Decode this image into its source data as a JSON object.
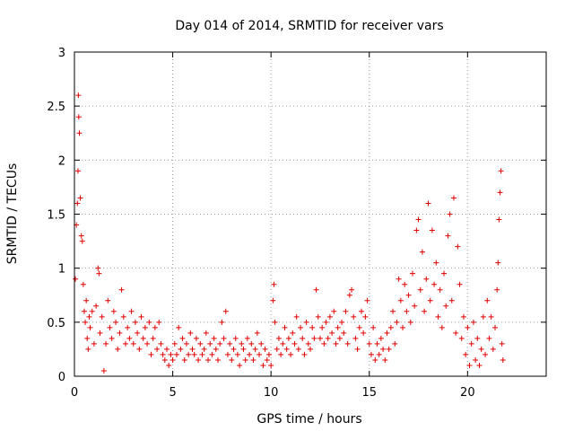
{
  "chart_data": {
    "type": "scatter",
    "title": "Day 014 of 2014, SRMTID for receiver vars",
    "xlabel": "GPS time / hours",
    "ylabel": "SRMTID / TECUs",
    "xlim": [
      0,
      24
    ],
    "ylim": [
      0,
      3
    ],
    "xticks": [
      0,
      5,
      10,
      15,
      20
    ],
    "yticks": [
      0,
      0.5,
      1,
      1.5,
      2,
      2.5,
      3
    ],
    "xtick_labels": [
      "0",
      "5",
      "10",
      "15",
      "20"
    ],
    "ytick_labels": [
      "0",
      "0.5",
      "1",
      "1.5",
      "2",
      "2.5",
      "3"
    ],
    "grid": true,
    "marker": "plus",
    "color": "#e00000",
    "series": [
      {
        "name": "SRMTID",
        "points": [
          [
            0.05,
            0.9
          ],
          [
            0.1,
            1.4
          ],
          [
            0.15,
            1.6
          ],
          [
            0.2,
            2.6
          ],
          [
            0.22,
            2.4
          ],
          [
            0.25,
            2.25
          ],
          [
            0.18,
            1.9
          ],
          [
            0.3,
            1.65
          ],
          [
            0.35,
            1.3
          ],
          [
            0.4,
            1.25
          ],
          [
            0.45,
            0.85
          ],
          [
            0.5,
            0.6
          ],
          [
            0.55,
            0.5
          ],
          [
            0.6,
            0.7
          ],
          [
            0.65,
            0.35
          ],
          [
            0.7,
            0.25
          ],
          [
            0.75,
            0.55
          ],
          [
            0.8,
            0.45
          ],
          [
            0.9,
            0.6
          ],
          [
            1.0,
            0.3
          ],
          [
            1.1,
            0.65
          ],
          [
            1.2,
            1.0
          ],
          [
            1.25,
            0.95
          ],
          [
            1.3,
            0.4
          ],
          [
            1.4,
            0.55
          ],
          [
            1.5,
            0.05
          ],
          [
            1.6,
            0.3
          ],
          [
            1.7,
            0.7
          ],
          [
            1.8,
            0.45
          ],
          [
            1.9,
            0.35
          ],
          [
            2.0,
            0.6
          ],
          [
            2.1,
            0.5
          ],
          [
            2.2,
            0.25
          ],
          [
            2.3,
            0.4
          ],
          [
            2.4,
            0.8
          ],
          [
            2.5,
            0.55
          ],
          [
            2.6,
            0.3
          ],
          [
            2.7,
            0.45
          ],
          [
            2.8,
            0.35
          ],
          [
            2.9,
            0.6
          ],
          [
            3.0,
            0.3
          ],
          [
            3.1,
            0.5
          ],
          [
            3.2,
            0.4
          ],
          [
            3.3,
            0.25
          ],
          [
            3.4,
            0.55
          ],
          [
            3.5,
            0.35
          ],
          [
            3.6,
            0.45
          ],
          [
            3.7,
            0.3
          ],
          [
            3.8,
            0.5
          ],
          [
            3.9,
            0.2
          ],
          [
            4.0,
            0.35
          ],
          [
            4.1,
            0.45
          ],
          [
            4.2,
            0.25
          ],
          [
            4.3,
            0.5
          ],
          [
            4.4,
            0.3
          ],
          [
            4.5,
            0.2
          ],
          [
            4.6,
            0.15
          ],
          [
            4.7,
            0.25
          ],
          [
            4.8,
            0.1
          ],
          [
            4.9,
            0.2
          ],
          [
            5.0,
            0.15
          ],
          [
            5.1,
            0.3
          ],
          [
            5.2,
            0.2
          ],
          [
            5.3,
            0.45
          ],
          [
            5.4,
            0.25
          ],
          [
            5.5,
            0.35
          ],
          [
            5.6,
            0.15
          ],
          [
            5.7,
            0.3
          ],
          [
            5.8,
            0.2
          ],
          [
            5.9,
            0.4
          ],
          [
            6.0,
            0.25
          ],
          [
            6.1,
            0.2
          ],
          [
            6.2,
            0.35
          ],
          [
            6.3,
            0.15
          ],
          [
            6.4,
            0.3
          ],
          [
            6.5,
            0.2
          ],
          [
            6.6,
            0.25
          ],
          [
            6.7,
            0.4
          ],
          [
            6.8,
            0.15
          ],
          [
            6.9,
            0.3
          ],
          [
            7.0,
            0.2
          ],
          [
            7.1,
            0.35
          ],
          [
            7.2,
            0.25
          ],
          [
            7.3,
            0.15
          ],
          [
            7.4,
            0.3
          ],
          [
            7.5,
            0.5
          ],
          [
            7.6,
            0.35
          ],
          [
            7.7,
            0.6
          ],
          [
            7.8,
            0.2
          ],
          [
            7.9,
            0.3
          ],
          [
            8.0,
            0.15
          ],
          [
            8.1,
            0.25
          ],
          [
            8.2,
            0.35
          ],
          [
            8.3,
            0.2
          ],
          [
            8.4,
            0.1
          ],
          [
            8.5,
            0.3
          ],
          [
            8.6,
            0.25
          ],
          [
            8.7,
            0.15
          ],
          [
            8.8,
            0.35
          ],
          [
            8.9,
            0.2
          ],
          [
            9.0,
            0.3
          ],
          [
            9.1,
            0.15
          ],
          [
            9.2,
            0.25
          ],
          [
            9.3,
            0.4
          ],
          [
            9.4,
            0.2
          ],
          [
            9.5,
            0.3
          ],
          [
            9.6,
            0.1
          ],
          [
            9.7,
            0.25
          ],
          [
            9.8,
            0.15
          ],
          [
            9.9,
            0.2
          ],
          [
            10.0,
            0.1
          ],
          [
            10.1,
            0.7
          ],
          [
            10.15,
            0.85
          ],
          [
            10.2,
            0.5
          ],
          [
            10.3,
            0.25
          ],
          [
            10.4,
            0.35
          ],
          [
            10.5,
            0.2
          ],
          [
            10.6,
            0.3
          ],
          [
            10.7,
            0.45
          ],
          [
            10.8,
            0.25
          ],
          [
            10.9,
            0.35
          ],
          [
            11.0,
            0.2
          ],
          [
            11.1,
            0.4
          ],
          [
            11.2,
            0.3
          ],
          [
            11.3,
            0.55
          ],
          [
            11.4,
            0.25
          ],
          [
            11.5,
            0.45
          ],
          [
            11.6,
            0.35
          ],
          [
            11.7,
            0.2
          ],
          [
            11.8,
            0.5
          ],
          [
            11.9,
            0.3
          ],
          [
            12.0,
            0.25
          ],
          [
            12.1,
            0.45
          ],
          [
            12.2,
            0.35
          ],
          [
            12.3,
            0.8
          ],
          [
            12.4,
            0.55
          ],
          [
            12.5,
            0.35
          ],
          [
            12.6,
            0.45
          ],
          [
            12.7,
            0.3
          ],
          [
            12.8,
            0.5
          ],
          [
            12.9,
            0.35
          ],
          [
            13.0,
            0.55
          ],
          [
            13.1,
            0.4
          ],
          [
            13.2,
            0.6
          ],
          [
            13.3,
            0.3
          ],
          [
            13.4,
            0.45
          ],
          [
            13.5,
            0.35
          ],
          [
            13.6,
            0.5
          ],
          [
            13.7,
            0.4
          ],
          [
            13.8,
            0.6
          ],
          [
            13.9,
            0.3
          ],
          [
            14.0,
            0.75
          ],
          [
            14.1,
            0.8
          ],
          [
            14.2,
            0.55
          ],
          [
            14.3,
            0.35
          ],
          [
            14.4,
            0.25
          ],
          [
            14.5,
            0.45
          ],
          [
            14.6,
            0.6
          ],
          [
            14.7,
            0.4
          ],
          [
            14.8,
            0.55
          ],
          [
            14.9,
            0.7
          ],
          [
            15.0,
            0.3
          ],
          [
            15.1,
            0.2
          ],
          [
            15.2,
            0.45
          ],
          [
            15.3,
            0.15
          ],
          [
            15.4,
            0.3
          ],
          [
            15.5,
            0.2
          ],
          [
            15.6,
            0.35
          ],
          [
            15.7,
            0.25
          ],
          [
            15.8,
            0.15
          ],
          [
            15.9,
            0.4
          ],
          [
            16.0,
            0.25
          ],
          [
            16.1,
            0.45
          ],
          [
            16.2,
            0.6
          ],
          [
            16.3,
            0.3
          ],
          [
            16.4,
            0.5
          ],
          [
            16.5,
            0.9
          ],
          [
            16.6,
            0.7
          ],
          [
            16.7,
            0.45
          ],
          [
            16.8,
            0.85
          ],
          [
            16.9,
            0.6
          ],
          [
            17.0,
            0.75
          ],
          [
            17.1,
            0.5
          ],
          [
            17.2,
            0.95
          ],
          [
            17.3,
            0.65
          ],
          [
            17.4,
            1.35
          ],
          [
            17.5,
            1.45
          ],
          [
            17.6,
            0.8
          ],
          [
            17.7,
            1.15
          ],
          [
            17.8,
            0.6
          ],
          [
            17.9,
            0.9
          ],
          [
            18.0,
            1.6
          ],
          [
            18.1,
            0.7
          ],
          [
            18.2,
            1.35
          ],
          [
            18.3,
            0.85
          ],
          [
            18.4,
            1.05
          ],
          [
            18.5,
            0.55
          ],
          [
            18.6,
            0.8
          ],
          [
            18.7,
            0.45
          ],
          [
            18.8,
            0.95
          ],
          [
            18.9,
            0.65
          ],
          [
            19.0,
            1.3
          ],
          [
            19.1,
            1.5
          ],
          [
            19.2,
            0.7
          ],
          [
            19.3,
            1.65
          ],
          [
            19.4,
            0.4
          ],
          [
            19.5,
            1.2
          ],
          [
            19.6,
            0.85
          ],
          [
            19.7,
            0.35
          ],
          [
            19.8,
            0.55
          ],
          [
            19.9,
            0.2
          ],
          [
            20.0,
            0.45
          ],
          [
            20.1,
            0.1
          ],
          [
            20.2,
            0.3
          ],
          [
            20.3,
            0.5
          ],
          [
            20.4,
            0.15
          ],
          [
            20.5,
            0.35
          ],
          [
            20.6,
            0.1
          ],
          [
            20.7,
            0.25
          ],
          [
            20.8,
            0.55
          ],
          [
            20.9,
            0.2
          ],
          [
            21.0,
            0.7
          ],
          [
            21.1,
            0.35
          ],
          [
            21.2,
            0.55
          ],
          [
            21.3,
            0.25
          ],
          [
            21.4,
            0.45
          ],
          [
            21.5,
            0.8
          ],
          [
            21.55,
            1.05
          ],
          [
            21.6,
            1.45
          ],
          [
            21.65,
            1.7
          ],
          [
            21.7,
            1.9
          ],
          [
            21.75,
            0.3
          ],
          [
            21.8,
            0.15
          ]
        ]
      }
    ]
  }
}
